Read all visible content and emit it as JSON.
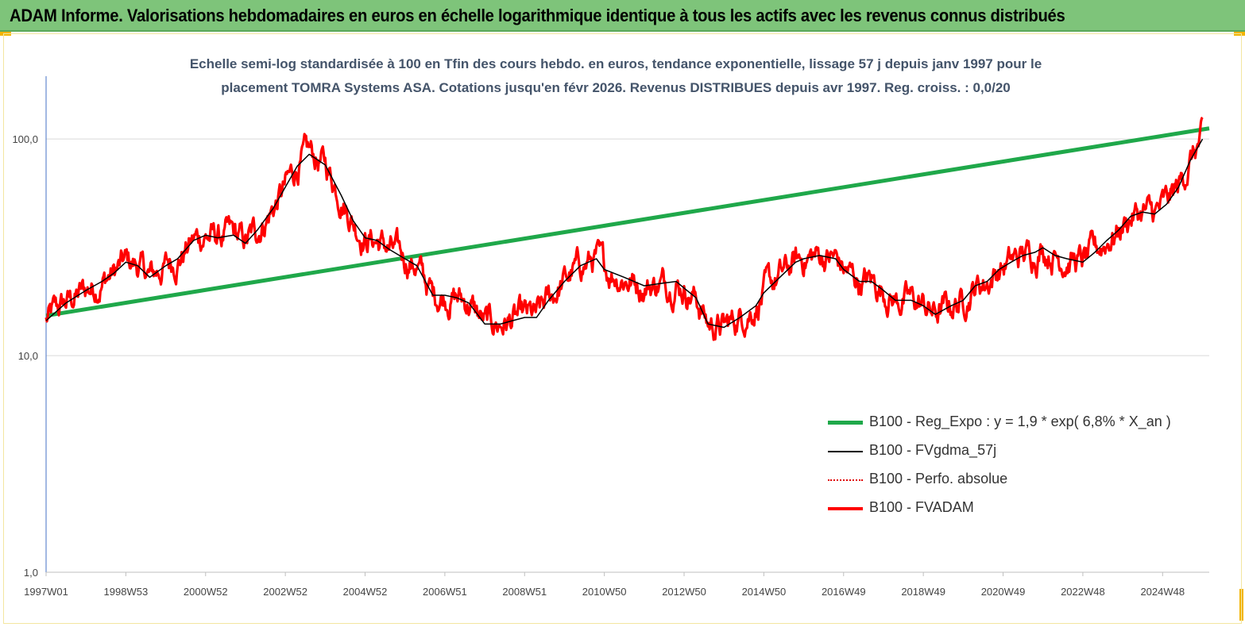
{
  "header": {
    "title": "ADAM Informe. Valorisations hebdomadaires en euros en échelle logarithmique identique à tous les actifs avec les revenus connus distribués"
  },
  "chart_data": {
    "type": "line",
    "title_line1": "Echelle semi-log standardisée à 100 en Tfin des cours hebdo. en euros, tendance exponentielle, lissage 57 j depuis janv 1997 pour le",
    "title_line2": "placement TOMRA Systems ASA. Cotations jusqu'en févr 2026. Revenus DISTRIBUES depuis avr 1997. Reg. croiss. : 0,0/20",
    "y_scale": "log",
    "ylim": [
      1,
      195
    ],
    "xlim": [
      1997.0,
      2026.17
    ],
    "y_ticks": [
      {
        "value": 1,
        "label": "1,0"
      },
      {
        "value": 10,
        "label": "10,0"
      },
      {
        "value": 100,
        "label": "100,0"
      }
    ],
    "x_ticks": [
      {
        "value": 1997.0,
        "label": "1997W01"
      },
      {
        "value": 1999.0,
        "label": "1998W53"
      },
      {
        "value": 2001.0,
        "label": "2000W52"
      },
      {
        "value": 2003.0,
        "label": "2002W52"
      },
      {
        "value": 2005.0,
        "label": "2004W52"
      },
      {
        "value": 2007.0,
        "label": "2006W51"
      },
      {
        "value": 2009.0,
        "label": "2008W51"
      },
      {
        "value": 2011.0,
        "label": "2010W50"
      },
      {
        "value": 2013.0,
        "label": "2012W50"
      },
      {
        "value": 2015.0,
        "label": "2014W50"
      },
      {
        "value": 2017.0,
        "label": "2016W49"
      },
      {
        "value": 2019.0,
        "label": "2018W49"
      },
      {
        "value": 2021.0,
        "label": "2020W49"
      },
      {
        "value": 2023.0,
        "label": "2022W48"
      },
      {
        "value": 2025.0,
        "label": "2024W48"
      }
    ],
    "grid": "horizontal",
    "legend_position": "bottom-right",
    "series": [
      {
        "name": "B100 - Reg_Expo : y = 1,9 *  exp( 6,8% *  X_an )",
        "color": "#1fa84a",
        "style": "thick",
        "x": [
          1997.0,
          2026.17
        ],
        "y": [
          15.3,
          112
        ]
      },
      {
        "name": "B100 - FVgdma_57j",
        "color": "#000000",
        "style": "thin",
        "x": [
          1997.0,
          1997.5,
          1998.0,
          1998.4,
          1998.7,
          1999.0,
          1999.3,
          1999.6,
          2000.0,
          2000.3,
          2000.7,
          2001.0,
          2001.3,
          2001.7,
          2002.0,
          2002.3,
          2002.7,
          2003.0,
          2003.3,
          2003.6,
          2004.0,
          2004.4,
          2004.7,
          2005.0,
          2005.3,
          2005.6,
          2006.0,
          2006.3,
          2006.7,
          2007.0,
          2007.3,
          2007.6,
          2008.0,
          2008.4,
          2008.7,
          2009.0,
          2009.3,
          2009.6,
          2010.0,
          2010.4,
          2010.8,
          2011.0,
          2011.5,
          2012.0,
          2012.4,
          2012.8,
          2013.0,
          2013.3,
          2013.6,
          2014.0,
          2014.4,
          2014.8,
          2015.0,
          2015.4,
          2015.8,
          2016.0,
          2016.4,
          2016.8,
          2017.0,
          2017.4,
          2017.7,
          2018.0,
          2018.3,
          2018.7,
          2019.0,
          2019.3,
          2019.7,
          2020.0,
          2020.3,
          2020.6,
          2020.9,
          2021.2,
          2021.5,
          2021.8,
          2022.0,
          2022.3,
          2022.6,
          2023.0,
          2023.3,
          2023.6,
          2023.9,
          2024.2,
          2024.5,
          2024.8,
          2025.1,
          2025.4,
          2025.7,
          2026.0
        ],
        "y": [
          14.5,
          17.5,
          20.0,
          22.0,
          24.0,
          27.0,
          26.0,
          23.0,
          26.0,
          28.0,
          34.0,
          36.0,
          35.0,
          36.0,
          33.0,
          38.0,
          48.0,
          60.0,
          75.0,
          85.0,
          76.0,
          55.0,
          42.0,
          35.0,
          34.0,
          31.0,
          28.0,
          26.0,
          19.0,
          19.0,
          18.5,
          17.5,
          14.0,
          14.0,
          14.5,
          15.0,
          15.0,
          18.0,
          22.0,
          26.0,
          28.0,
          25.0,
          23.0,
          21.0,
          21.5,
          22.0,
          20.5,
          18.5,
          14.0,
          13.5,
          15.0,
          17.0,
          19.5,
          23.0,
          27.0,
          28.0,
          29.0,
          28.0,
          25.0,
          22.0,
          22.0,
          20.0,
          18.0,
          18.0,
          17.0,
          15.5,
          17.0,
          18.0,
          21.0,
          22.0,
          25.0,
          27.0,
          29.0,
          30.0,
          31.5,
          29.0,
          28.0,
          27.0,
          30.0,
          34.0,
          38.0,
          44.0,
          46.0,
          45.0,
          50.0,
          60.0,
          80.0,
          100.0
        ]
      },
      {
        "name": "B100 - Perfo. absolue",
        "color": "#e00000",
        "style": "dotted"
      },
      {
        "name": "B100 - FVADAM",
        "color": "#ff0000",
        "style": "thick"
      }
    ]
  }
}
